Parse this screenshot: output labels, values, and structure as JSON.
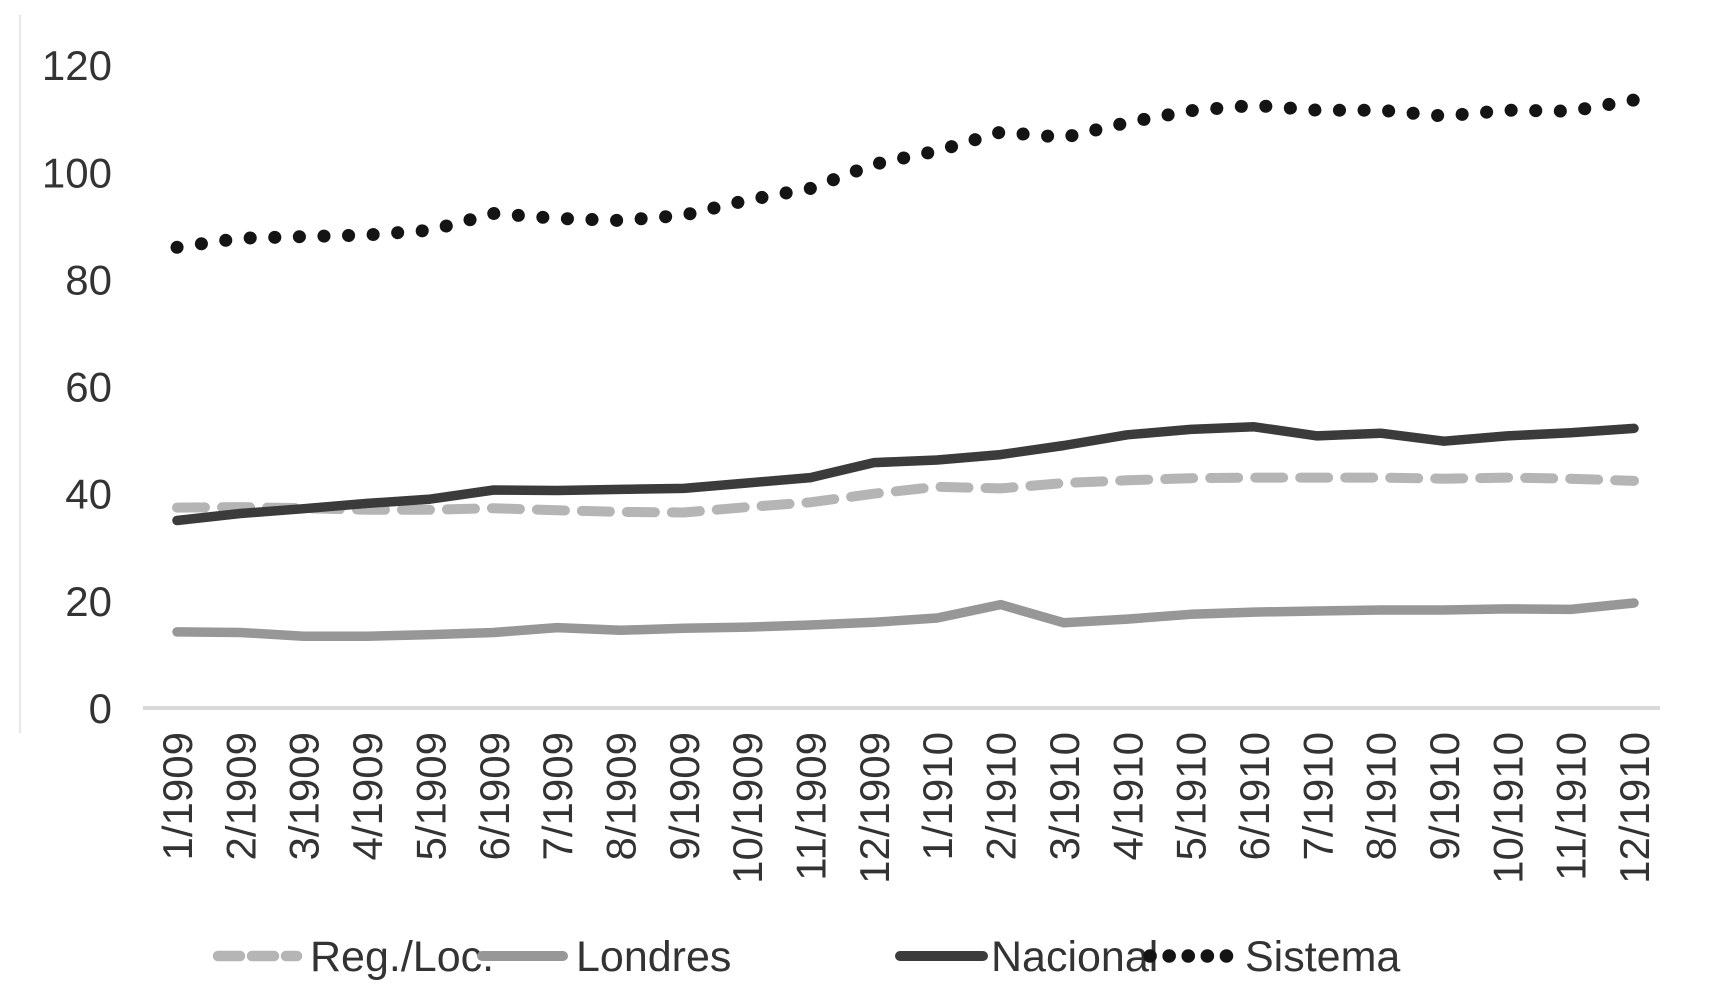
{
  "chart_data": {
    "type": "line",
    "title": "",
    "xlabel": "",
    "ylabel": "",
    "ylim": [
      0,
      120
    ],
    "yticks": [
      0,
      20,
      40,
      60,
      80,
      100,
      120
    ],
    "grid": "none",
    "legend_position": "bottom",
    "x": [
      "1/1909",
      "2/1909",
      "3/1909",
      "4/1909",
      "5/1909",
      "6/1909",
      "7/1909",
      "8/1909",
      "9/1909",
      "10/1909",
      "11/1909",
      "12/1909",
      "1/1910",
      "2/1910",
      "3/1910",
      "4/1910",
      "5/1910",
      "6/1910",
      "7/1910",
      "8/1910",
      "9/1910",
      "10/1910",
      "11/1910",
      "12/1910"
    ],
    "series": [
      {
        "name": "Reg./Loc.",
        "style": "dashed",
        "color": "#b5b5b5",
        "values": [
          37.4,
          37.5,
          37.3,
          37.0,
          37.0,
          37.3,
          36.9,
          36.6,
          36.5,
          37.5,
          38.4,
          40.0,
          41.3,
          41.0,
          42.0,
          42.5,
          42.9,
          43.0,
          43.0,
          43.0,
          42.8,
          43.0,
          42.8,
          42.4
        ]
      },
      {
        "name": "Londres",
        "style": "solid",
        "color": "#979797",
        "values": [
          14.2,
          14.1,
          13.4,
          13.4,
          13.7,
          14.1,
          15.0,
          14.5,
          14.9,
          15.1,
          15.5,
          16.0,
          16.8,
          19.3,
          15.9,
          16.6,
          17.5,
          17.9,
          18.1,
          18.3,
          18.3,
          18.5,
          18.4,
          19.6
        ]
      },
      {
        "name": "Nacional",
        "style": "solid",
        "color": "#3b3b3b",
        "values": [
          35.0,
          36.3,
          37.2,
          38.2,
          39.0,
          40.7,
          40.6,
          40.8,
          41.0,
          42.0,
          43.0,
          45.8,
          46.3,
          47.3,
          49.0,
          51.0,
          52.0,
          52.5,
          50.8,
          51.3,
          49.8,
          50.8,
          51.4,
          52.2
        ]
      },
      {
        "name": "Sistema",
        "style": "dotted",
        "color": "#141414",
        "values": [
          86.0,
          87.7,
          88.0,
          88.3,
          89.2,
          92.3,
          91.4,
          91.0,
          92.0,
          94.8,
          97.0,
          101.5,
          104.0,
          107.5,
          106.5,
          109.3,
          111.5,
          112.5,
          111.6,
          111.6,
          110.5,
          111.6,
          111.4,
          113.5
        ]
      }
    ]
  },
  "axes": {
    "y_tick_labels": [
      "0",
      "20",
      "40",
      "60",
      "80",
      "100",
      "120"
    ],
    "x_tick_labels": [
      "1/1909",
      "2/1909",
      "3/1909",
      "4/1909",
      "5/1909",
      "6/1909",
      "7/1909",
      "8/1909",
      "9/1909",
      "10/1909",
      "11/1909",
      "12/1909",
      "1/1910",
      "2/1910",
      "3/1910",
      "4/1910",
      "5/1910",
      "6/1910",
      "7/1910",
      "8/1910",
      "9/1910",
      "10/1910",
      "11/1910",
      "12/1910"
    ]
  },
  "legend": {
    "items": [
      "Reg./Loc.",
      "Londres",
      "Nacional",
      "Sistema"
    ]
  },
  "colors": {
    "axis_line": "#d9d9d9",
    "tick_label": "#333333",
    "left_border": "#e9e9e9",
    "background": "#ffffff"
  }
}
